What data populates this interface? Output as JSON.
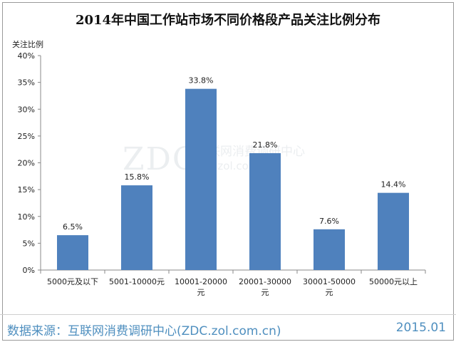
{
  "chart_data": {
    "type": "bar",
    "title": "2014年中国工作站市场不同价格段产品关注比例分布",
    "ylabel": "关注比例",
    "xlabel": "",
    "categories": [
      "5000元及以下",
      "5001-10000元",
      "10001-20000元",
      "20001-30000元",
      "30001-50000元",
      "50000元以上"
    ],
    "values": [
      6.5,
      15.8,
      33.8,
      21.8,
      7.6,
      14.4
    ],
    "value_labels": [
      "6.5%",
      "15.8%",
      "33.8%",
      "21.8%",
      "7.6%",
      "14.4%"
    ],
    "ylim": [
      0,
      40
    ],
    "yticks": [
      0,
      5,
      10,
      15,
      20,
      25,
      30,
      35,
      40
    ],
    "ytick_labels": [
      "0%",
      "5%",
      "10%",
      "15%",
      "20%",
      "25%",
      "30%",
      "35%",
      "40%"
    ],
    "grid": false,
    "bar_color": "#4f81bd"
  },
  "watermark": {
    "logo": "ZDC",
    "name": "互联网消费调研中心",
    "site": "zdc.zol.com.cn"
  },
  "footer": {
    "source": "数据来源：互联网消费调研中心(ZDC.zol.com.cn)",
    "date": "2015.01"
  }
}
